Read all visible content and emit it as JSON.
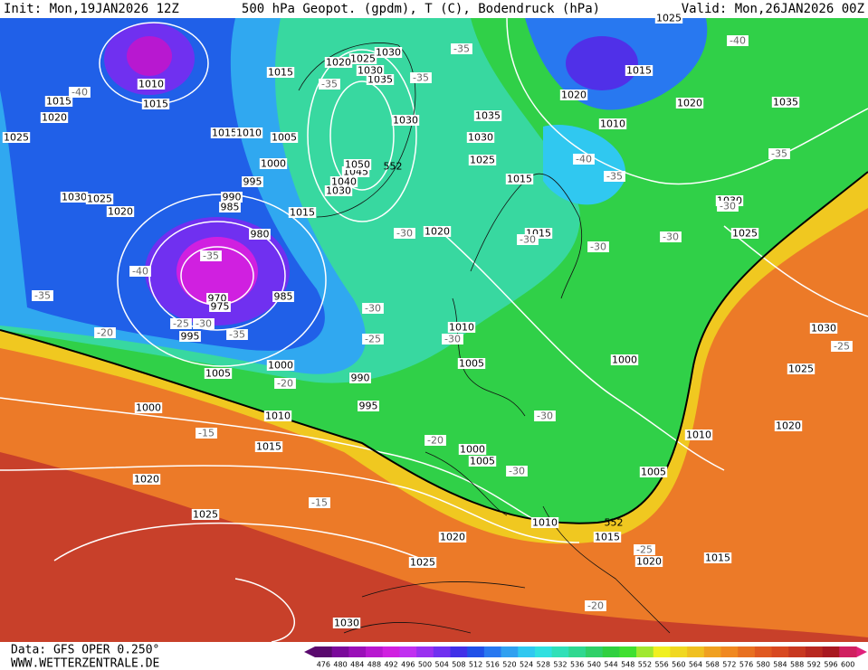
{
  "header": {
    "init": "Init: Mon,19JAN2026 12Z",
    "title": "500 hPa Geopot. (gpdm), T (C), Bodendruck (hPa)",
    "valid": "Valid: Mon,26JAN2026 00Z"
  },
  "footer": {
    "source": "Data: GFS OPER 0.250°",
    "site": "WWW.WETTERZENTRALE.DE"
  },
  "colorbar": {
    "labels": [
      476,
      480,
      484,
      488,
      492,
      496,
      500,
      504,
      508,
      512,
      516,
      520,
      524,
      528,
      532,
      536,
      540,
      544,
      548,
      552,
      556,
      560,
      564,
      568,
      572,
      576,
      580,
      584,
      588,
      592,
      596,
      600
    ],
    "colors": [
      "#5a0a6e",
      "#7a0a9a",
      "#9a10b8",
      "#b818d0",
      "#d020e0",
      "#c030f0",
      "#9a30f0",
      "#7030f0",
      "#4030e8",
      "#2050e8",
      "#2878f0",
      "#30a0f0",
      "#30c8f0",
      "#30e0e0",
      "#30e0b8",
      "#30d890",
      "#30d068",
      "#30d040",
      "#40e030",
      "#a0e830",
      "#f0f020",
      "#f0d820",
      "#f0c020",
      "#f0a020",
      "#f08820",
      "#e87020",
      "#e05820",
      "#d84820",
      "#c83820",
      "#b82820",
      "#a81820",
      "#d02060"
    ]
  },
  "pressure_labels": [
    1015,
    1010,
    1015,
    1015,
    1020,
    1015,
    1010,
    1005,
    1000,
    995,
    990,
    985,
    980,
    1030,
    1025,
    1020,
    995,
    970,
    975,
    985,
    1005,
    1000,
    990,
    995,
    1000,
    1010,
    1015,
    1020,
    1025,
    1020,
    1025,
    1030,
    1010,
    1005,
    1000,
    1005,
    1000,
    1005,
    1010,
    1015,
    1020,
    1015,
    1010,
    1020,
    1025,
    1030,
    1025,
    1030,
    1020,
    1015,
    1015,
    1015,
    1025,
    1030,
    1035,
    1030,
    1035,
    1030,
    1030,
    1025,
    1020,
    1045,
    1050,
    1040,
    1030,
    1015,
    1020,
    1010,
    1020,
    1035,
    1025,
    1025
  ],
  "temperature_labels": [
    -40,
    -35,
    -35,
    -40,
    -35,
    -40,
    -35,
    -30,
    -30,
    -30,
    -30,
    -30,
    -35,
    -40,
    -35,
    -20,
    -25,
    -30,
    -35,
    -30,
    -25,
    -30,
    -20,
    -30,
    -20,
    -30,
    -15,
    -15,
    -25,
    -20,
    -25,
    -35
  ],
  "height_labels": [
    552,
    552
  ]
}
